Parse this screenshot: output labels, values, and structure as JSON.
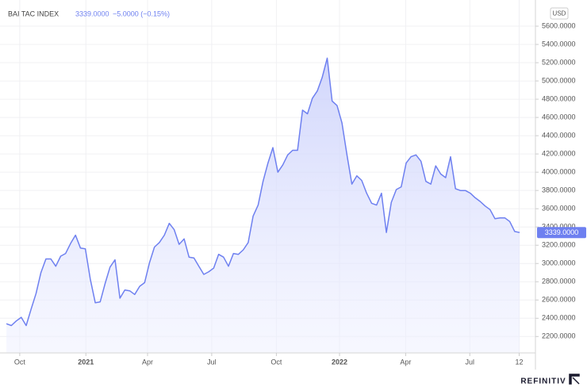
{
  "chart_data": {
    "type": "area",
    "title": "BAI TAC INDEX",
    "price": "3339.0000",
    "change": "−5.0000 (−0.15%)",
    "currency": "USD",
    "brand": "REFINITIV",
    "color": "#6e80f0",
    "grid": true,
    "x": [
      0,
      1,
      2,
      3,
      4,
      5,
      6,
      7,
      8,
      9,
      10,
      11,
      12,
      13,
      14,
      15,
      16,
      17,
      18,
      19,
      20,
      21,
      22,
      23,
      24,
      25,
      26,
      27,
      28,
      29,
      30,
      31,
      32,
      33,
      34,
      35,
      36,
      37,
      38,
      39,
      40,
      41,
      42,
      43,
      44,
      45,
      46,
      47,
      48,
      49,
      50,
      51,
      52,
      53,
      54,
      55,
      56,
      57,
      58,
      59,
      60,
      61,
      62,
      63,
      64,
      65,
      66,
      67,
      68,
      69,
      70,
      71,
      72,
      73,
      74,
      75,
      76,
      77,
      78,
      79,
      80,
      81,
      82,
      83,
      84,
      85,
      86,
      87,
      88,
      89,
      90,
      91,
      92,
      93,
      94,
      95,
      96,
      97,
      98,
      99,
      100,
      101,
      102,
      103,
      104
    ],
    "series": [
      {
        "name": "BAI TAC INDEX",
        "color": "#6e80f0",
        "values": [
          2340,
          2320,
          2370,
          2410,
          2320,
          2500,
          2670,
          2900,
          3050,
          3050,
          2970,
          3080,
          3110,
          3220,
          3310,
          3170,
          3160,
          2830,
          2570,
          2580,
          2780,
          2960,
          3040,
          2620,
          2710,
          2700,
          2660,
          2750,
          2790,
          3010,
          3180,
          3230,
          3310,
          3440,
          3370,
          3210,
          3270,
          3070,
          3060,
          2970,
          2880,
          2910,
          2950,
          3100,
          3070,
          2970,
          3110,
          3100,
          3150,
          3230,
          3520,
          3640,
          3900,
          4100,
          4270,
          4000,
          4080,
          4190,
          4240,
          4240,
          4680,
          4640,
          4810,
          4890,
          5040,
          5250,
          4780,
          4730,
          4540,
          4190,
          3870,
          3960,
          3910,
          3770,
          3660,
          3640,
          3770,
          3340,
          3670,
          3810,
          3840,
          4100,
          4170,
          4190,
          4120,
          3900,
          3870,
          4070,
          3980,
          3940,
          4170,
          3820,
          3800,
          3800,
          3770,
          3720,
          3680,
          3630,
          3590,
          3490,
          3500,
          3500,
          3460,
          3350,
          3339
        ]
      }
    ],
    "xlim": [
      -1.3,
      107.2
    ],
    "ylim": [
      2020,
      5800
    ],
    "xticks": [
      {
        "value": 2.7,
        "label": "Oct"
      },
      {
        "value": 16.1,
        "label": "2021"
      },
      {
        "value": 28.6,
        "label": "Apr"
      },
      {
        "value": 41.6,
        "label": "Jul"
      },
      {
        "value": 54.7,
        "label": "Oct"
      },
      {
        "value": 67.5,
        "label": "2022"
      },
      {
        "value": 80.9,
        "label": "Apr"
      },
      {
        "value": 93.9,
        "label": "Jul"
      },
      {
        "value": 103.9,
        "label": "12"
      }
    ],
    "yticks": [
      {
        "value": 2200,
        "label": "2200.0000"
      },
      {
        "value": 2400,
        "label": "2400.0000"
      },
      {
        "value": 2600,
        "label": "2600.0000"
      },
      {
        "value": 2800,
        "label": "2800.0000"
      },
      {
        "value": 3000,
        "label": "3000.0000"
      },
      {
        "value": 3200,
        "label": "3200.0000"
      },
      {
        "value": 3400,
        "label": "3400.0000"
      },
      {
        "value": 3600,
        "label": "3600.0000"
      },
      {
        "value": 3800,
        "label": "3800.0000"
      },
      {
        "value": 4000,
        "label": "4000.0000"
      },
      {
        "value": 4200,
        "label": "4200.0000"
      },
      {
        "value": 4400,
        "label": "4400.0000"
      },
      {
        "value": 4600,
        "label": "4600.0000"
      },
      {
        "value": 4800,
        "label": "4800.0000"
      },
      {
        "value": 5000,
        "label": "5000.0000"
      },
      {
        "value": 5200,
        "label": "5200.0000"
      },
      {
        "value": 5400,
        "label": "5400.0000"
      },
      {
        "value": 5600,
        "label": "5600.0000"
      }
    ]
  }
}
